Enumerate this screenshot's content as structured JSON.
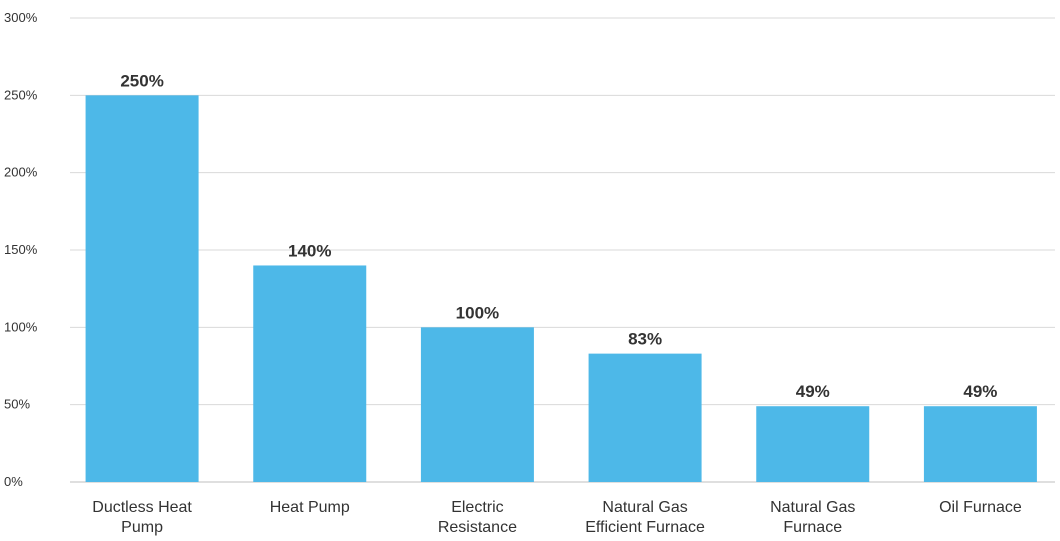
{
  "chart_data": {
    "type": "bar",
    "title": "",
    "xlabel": "",
    "ylabel": "",
    "categories": [
      [
        "Ductless Heat",
        "Pump"
      ],
      [
        "Heat Pump"
      ],
      [
        "Electric",
        "Resistance"
      ],
      [
        "Natural Gas",
        "Efficient Furnace"
      ],
      [
        "Natural Gas",
        "Furnace"
      ],
      [
        "Oil Furnace"
      ]
    ],
    "values": [
      250,
      140,
      100,
      83,
      49,
      49
    ],
    "data_labels": [
      "250%",
      "140%",
      "100%",
      "83%",
      "49%",
      "49%"
    ],
    "ylim": [
      0,
      300
    ],
    "yticks": [
      0,
      50,
      100,
      150,
      200,
      250,
      300
    ],
    "ytick_labels": [
      "0%",
      "50%",
      "100%",
      "150%",
      "200%",
      "250%",
      "300%"
    ],
    "grid": true,
    "legend": "none",
    "colors": {
      "bar": "#4db8e8",
      "grid": "#d9d9d9",
      "text": "#333333"
    }
  }
}
